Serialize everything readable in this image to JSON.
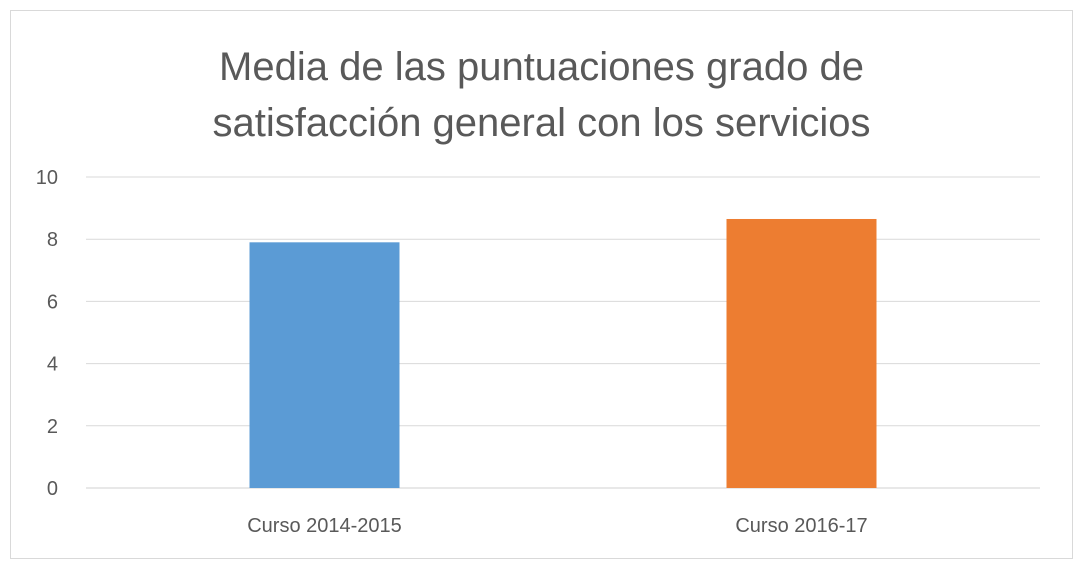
{
  "chart_data": {
    "type": "bar",
    "title_lines": [
      "Media de las puntuaciones grado de",
      "satisfacción general con los servicios"
    ],
    "categories": [
      "Curso 2014-2015",
      "Curso 2016-17"
    ],
    "values": [
      7.9,
      8.65
    ],
    "bar_colors": [
      "#5b9bd5",
      "#ed7d31"
    ],
    "ylim": [
      0,
      10
    ],
    "yticks": [
      0,
      2,
      4,
      6,
      8,
      10
    ],
    "grid": true,
    "xlabel": "",
    "ylabel": ""
  }
}
